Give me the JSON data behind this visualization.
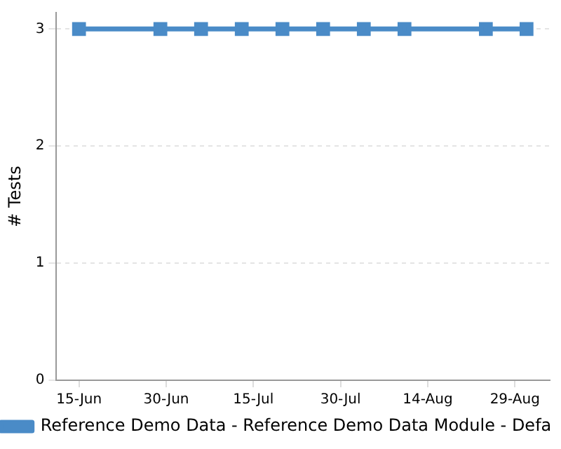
{
  "chart_data": {
    "type": "line",
    "ylabel": "# Tests",
    "x": [
      "--06-15",
      "--06-29",
      "--07-06",
      "--07-13",
      "--07-20",
      "--07-27",
      "--08-03",
      "--08-10",
      "--08-24",
      "--08-31"
    ],
    "series": [
      {
        "name": "Reference Demo Data - Reference Demo Data Module - Defa",
        "color": "#4a8bc7",
        "values": [
          3,
          3,
          3,
          3,
          3,
          3,
          3,
          3,
          3,
          3
        ]
      }
    ],
    "xlim": [
      "--06-11",
      "--09-04"
    ],
    "xticks": [
      {
        "value": "--06-15",
        "label": "15-Jun"
      },
      {
        "value": "--06-30",
        "label": "30-Jun"
      },
      {
        "value": "--07-15",
        "label": "15-Jul"
      },
      {
        "value": "--07-30",
        "label": "30-Jul"
      },
      {
        "value": "--08-14",
        "label": "14-Aug"
      },
      {
        "value": "--08-29",
        "label": "29-Aug"
      }
    ],
    "ylim": [
      0,
      3.14
    ],
    "yticks": [
      0,
      1,
      2,
      3
    ],
    "grid": "y",
    "legend": "bottom",
    "marker": "square",
    "line_style": "solid"
  }
}
